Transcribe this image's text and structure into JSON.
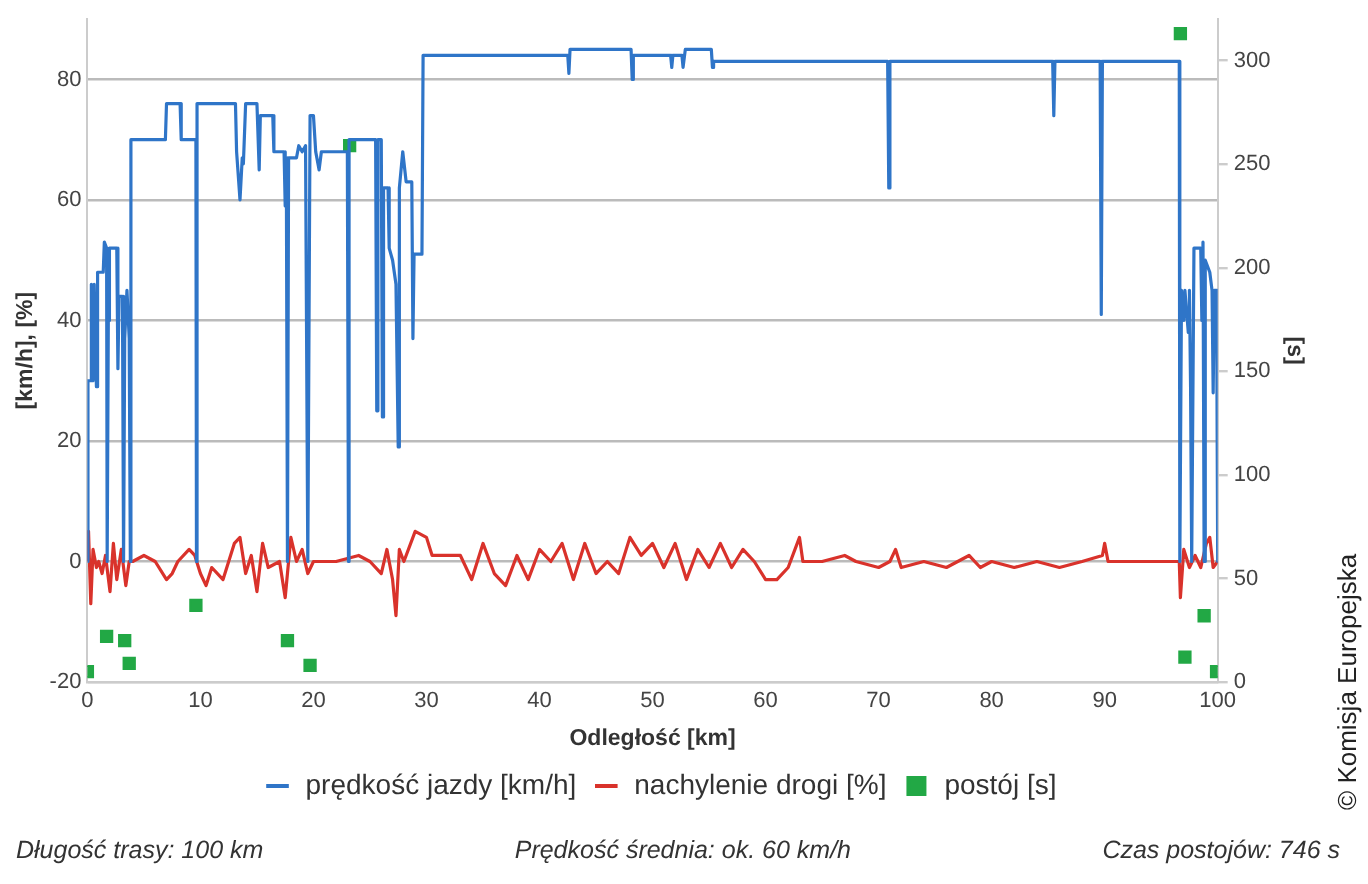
{
  "chart_data": {
    "type": "line",
    "xlabel": "Odległość [km]",
    "ylabel": "[km/h], [%]",
    "y2label": "[s]",
    "xlim": [
      0,
      100
    ],
    "xticks": [
      0,
      10,
      20,
      30,
      40,
      50,
      60,
      70,
      80,
      90,
      100
    ],
    "ylim": [
      -20,
      90
    ],
    "yticks": [
      -20,
      0,
      20,
      40,
      60,
      80
    ],
    "y2lim": [
      0,
      320
    ],
    "y2ticks": [
      0,
      50,
      100,
      150,
      200,
      250,
      300
    ],
    "grid": "y",
    "legend": "bottom",
    "annotations": [
      "Długość trasy: 100 km",
      "Prędkość średnia: ok. 60 km/h",
      "Czas postojów: 746 s",
      "© Komisja Europejska"
    ],
    "series": [
      {
        "name": "prędkość jazdy [km/h]",
        "color": "#2f75c8",
        "marker": "none",
        "x": [
          0,
          0.05,
          0.3,
          0.35,
          0.5,
          0.6,
          0.8,
          0.9,
          1.4,
          1.5,
          1.7,
          1.75,
          1.85,
          1.95,
          2.6,
          2.7,
          2.8,
          3.1,
          3.2,
          3.3,
          3.5,
          3.7,
          3.8,
          3.85,
          6.9,
          7.0,
          8.2,
          8.3,
          9.6,
          9.65,
          9.7,
          13.1,
          13.2,
          13.5,
          13.7,
          13.8,
          14.0,
          15.0,
          15.2,
          15.3,
          16.4,
          16.5,
          17.4,
          17.5,
          17.6,
          17.7,
          17.8,
          18.5,
          18.7,
          19.0,
          19.3,
          19.5,
          19.7,
          20.0,
          20.2,
          20.5,
          20.7,
          23.0,
          23.1,
          23.15,
          25.5,
          25.6,
          25.7,
          26.0,
          26.1,
          26.2,
          26.6,
          26.7,
          27.0,
          27.3,
          27.5,
          27.6,
          27.9,
          28.2,
          28.7,
          28.8,
          28.9,
          29.6,
          29.7,
          42.5,
          42.6,
          42.7,
          48.1,
          48.2,
          48.3,
          51.6,
          51.7,
          51.8,
          52.6,
          52.7,
          52.9,
          55.2,
          55.3,
          55.4,
          70.8,
          70.9,
          71.0,
          85.4,
          85.5,
          85.6,
          89.6,
          89.7,
          89.8,
          96.6,
          96.65,
          96.8,
          97.0,
          97.1,
          97.4,
          97.5,
          97.6,
          97.7,
          97.9,
          98.5,
          98.6,
          98.7,
          98.8,
          98.9,
          99.3,
          99.5,
          99.6,
          99.7,
          99.9,
          100
        ],
        "values": [
          0,
          30,
          30,
          46,
          30,
          46,
          29,
          48,
          48,
          53,
          52,
          0,
          40,
          52,
          52,
          32,
          44,
          44,
          0,
          37,
          45,
          37,
          0,
          70,
          70,
          76,
          76,
          70,
          70,
          0,
          76,
          76,
          68,
          60,
          67,
          66,
          76,
          76,
          65,
          74,
          74,
          68,
          68,
          59,
          67,
          0,
          67,
          67,
          69,
          68,
          69,
          0,
          74,
          74,
          68,
          65,
          68,
          68,
          0,
          70,
          70,
          25,
          70,
          70,
          24,
          62,
          62,
          52,
          50,
          46,
          19,
          62,
          68,
          63,
          63,
          37,
          51,
          51,
          84,
          84,
          81,
          85,
          85,
          80,
          84,
          84,
          82,
          84,
          84,
          82,
          85,
          85,
          82,
          83,
          83,
          62,
          83,
          83,
          74,
          83,
          83,
          41,
          83,
          83,
          0,
          45,
          40,
          45,
          38,
          45,
          29,
          0,
          52,
          52,
          40,
          53,
          0,
          50,
          48,
          45,
          28,
          45,
          45,
          0
        ]
      },
      {
        "name": "nachylenie drogi [%]",
        "color": "#d9322b",
        "marker": "none",
        "x": [
          0,
          0.1,
          0.3,
          0.5,
          0.8,
          1.0,
          1.3,
          1.6,
          2.0,
          2.3,
          2.6,
          3.0,
          3.4,
          3.7,
          4.0,
          5.0,
          6.0,
          7.0,
          7.5,
          8.0,
          9.0,
          9.5,
          10,
          10.5,
          11,
          12,
          12.5,
          13,
          13.5,
          14,
          14.5,
          15,
          15.5,
          16,
          17,
          17.5,
          18,
          18.5,
          19,
          19.5,
          20,
          22,
          24,
          25,
          26,
          26.5,
          27,
          27.3,
          27.6,
          28,
          29,
          30,
          30.5,
          32,
          33,
          34,
          35,
          36,
          37,
          38,
          39,
          40,
          41,
          42,
          43,
          44,
          45,
          46,
          47,
          48,
          49,
          50,
          51,
          52,
          53,
          54,
          55,
          56,
          57,
          58,
          59,
          60,
          61,
          62,
          63,
          63.3,
          65,
          67,
          68,
          70,
          71,
          71.5,
          72,
          74,
          76,
          78,
          79,
          80,
          82,
          84,
          86,
          88,
          89.8,
          90,
          90.3,
          92,
          94,
          96,
          96.6,
          96.7,
          97,
          97.5,
          98,
          98.5,
          99,
          99.3,
          99.6,
          100
        ],
        "values": [
          0,
          5,
          -7,
          2,
          -1,
          0,
          -2,
          1,
          -5,
          3,
          -3,
          2,
          -4,
          0,
          0,
          1,
          0,
          -3,
          -2,
          0,
          2,
          1,
          -2,
          -4,
          -1,
          -3,
          0,
          3,
          4,
          -2,
          1,
          -5,
          3,
          -1,
          0,
          -6,
          4,
          0,
          2,
          -2,
          0,
          0,
          1,
          0,
          -2,
          2,
          -3,
          -9,
          2,
          0,
          5,
          4,
          1,
          1,
          1,
          -3,
          3,
          -2,
          -4,
          1,
          -3,
          2,
          0,
          3,
          -3,
          3,
          -2,
          0,
          -2,
          4,
          1,
          3,
          -1,
          3,
          -3,
          2,
          -1,
          3,
          -1,
          2,
          0,
          -3,
          -3,
          -1,
          4,
          0,
          0,
          1,
          0,
          -1,
          0,
          2,
          -1,
          0,
          -1,
          1,
          -1,
          0,
          -1,
          0,
          -1,
          0,
          1,
          3,
          0,
          0,
          0,
          0,
          0,
          -6,
          2,
          -1,
          1,
          -1,
          3,
          4,
          -1,
          0
        ]
      },
      {
        "name": "postój [s]",
        "type": "scatter",
        "axis": "y2",
        "color": "#22a845",
        "marker": "square",
        "x": [
          0,
          1.7,
          3.3,
          3.7,
          9.6,
          17.7,
          19.7,
          23.2,
          96.7,
          97.1,
          98.8,
          99.9
        ],
        "values": [
          5,
          22,
          20,
          9,
          37,
          20,
          8,
          259,
          313,
          12,
          32,
          5
        ]
      }
    ]
  }
}
